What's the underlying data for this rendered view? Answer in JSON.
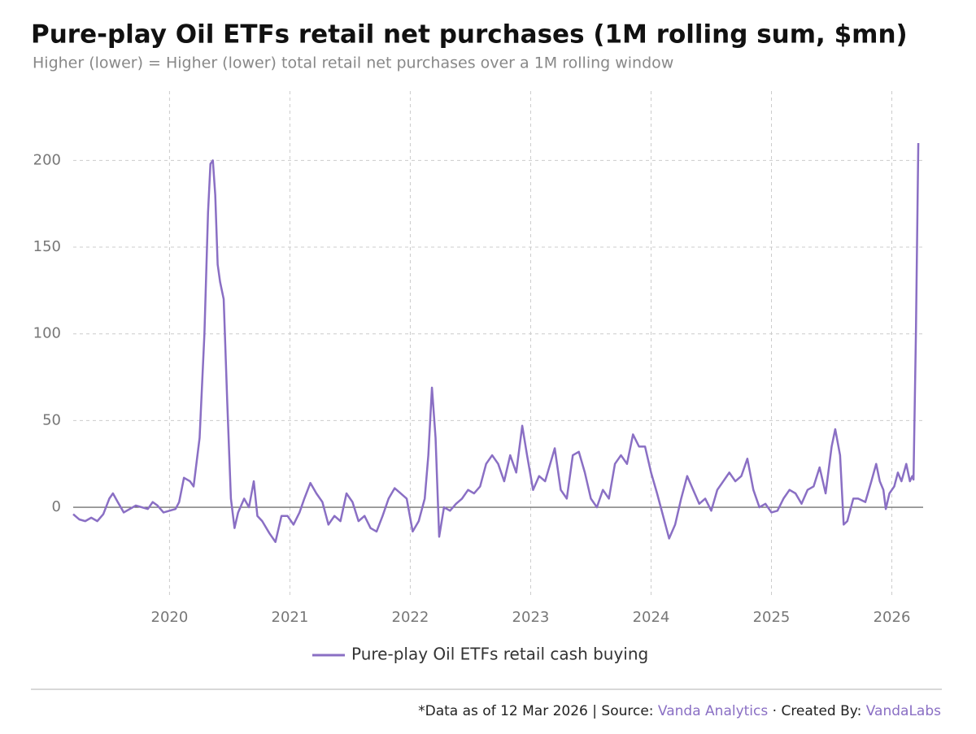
{
  "chart_data": {
    "type": "line",
    "title": "Pure-play Oil ETFs retail net purchases (1M rolling sum, $mn)",
    "subtitle": "Higher (lower) = Higher (lower) total retail net purchases over a 1M rolling window",
    "footnote": "*Data as of 12 Mar 2026 | Source:",
    "source": "Vanda Analytics",
    "credit_label": "· Created By:",
    "credit": "VandaLabs",
    "grid": true,
    "legend": "bottom",
    "xlim": [
      2019.2,
      2026.26
    ],
    "xticks": [
      2020,
      2021,
      2022,
      2023,
      2024,
      2025,
      2026
    ],
    "ylim": [
      -52,
      240
    ],
    "yticks": [
      0,
      50,
      100,
      150,
      200
    ],
    "x": [
      2019.2,
      2019.25,
      2019.3,
      2019.35,
      2019.4,
      2019.45,
      2019.5,
      2019.53,
      2019.57,
      2019.62,
      2019.67,
      2019.72,
      2019.77,
      2019.82,
      2019.86,
      2019.9,
      2019.95,
      2020.0,
      2020.05,
      2020.08,
      2020.12,
      2020.17,
      2020.2,
      2020.25,
      2020.29,
      2020.32,
      2020.34,
      2020.36,
      2020.38,
      2020.4,
      2020.42,
      2020.45,
      2020.48,
      2020.51,
      2020.54,
      2020.57,
      2020.62,
      2020.66,
      2020.7,
      2020.73,
      2020.77,
      2020.83,
      2020.88,
      2020.93,
      2020.98,
      2021.03,
      2021.08,
      2021.12,
      2021.17,
      2021.22,
      2021.27,
      2021.32,
      2021.37,
      2021.42,
      2021.47,
      2021.52,
      2021.57,
      2021.62,
      2021.67,
      2021.72,
      2021.77,
      2021.82,
      2021.87,
      2021.92,
      2021.97,
      2022.02,
      2022.07,
      2022.12,
      2022.15,
      2022.18,
      2022.21,
      2022.24,
      2022.28,
      2022.33,
      2022.38,
      2022.43,
      2022.48,
      2022.53,
      2022.58,
      2022.63,
      2022.68,
      2022.73,
      2022.78,
      2022.83,
      2022.88,
      2022.93,
      2022.97,
      2023.02,
      2023.07,
      2023.12,
      2023.2,
      2023.25,
      2023.3,
      2023.35,
      2023.4,
      2023.45,
      2023.5,
      2023.55,
      2023.6,
      2023.65,
      2023.7,
      2023.75,
      2023.8,
      2023.85,
      2023.9,
      2023.95,
      2024.0,
      2024.05,
      2024.1,
      2024.15,
      2024.2,
      2024.25,
      2024.3,
      2024.35,
      2024.4,
      2024.45,
      2024.5,
      2024.55,
      2024.6,
      2024.65,
      2024.7,
      2024.75,
      2024.8,
      2024.85,
      2024.9,
      2024.95,
      2025.0,
      2025.05,
      2025.1,
      2025.15,
      2025.2,
      2025.25,
      2025.3,
      2025.35,
      2025.4,
      2025.45,
      2025.5,
      2025.53,
      2025.57,
      2025.6,
      2025.63,
      2025.68,
      2025.72,
      2025.78,
      2025.83,
      2025.87,
      2025.9,
      2025.93,
      2025.95,
      2025.98,
      2026.02,
      2026.05,
      2026.08,
      2026.12,
      2026.15,
      2026.17,
      2026.18,
      2026.2,
      2026.22
    ],
    "series": [
      {
        "name": "Pure-play Oil ETFs retail cash buying",
        "color": "#8a6fc4",
        "values": [
          -4,
          -7,
          -8,
          -6,
          -8,
          -4,
          5,
          8,
          3,
          -3,
          -1,
          1,
          0,
          -1,
          3,
          1,
          -3,
          -2,
          -1,
          3,
          17,
          15,
          12,
          40,
          100,
          170,
          198,
          200,
          180,
          140,
          130,
          120,
          60,
          5,
          -12,
          -3,
          5,
          0,
          15,
          -5,
          -8,
          -15,
          -20,
          -5,
          -5,
          -10,
          -3,
          5,
          14,
          8,
          3,
          -10,
          -5,
          -8,
          8,
          3,
          -8,
          -5,
          -12,
          -14,
          -5,
          5,
          11,
          8,
          5,
          -14,
          -8,
          5,
          30,
          69,
          40,
          -17,
          0,
          -2,
          2,
          5,
          10,
          8,
          12,
          25,
          30,
          25,
          15,
          30,
          20,
          47,
          30,
          10,
          18,
          15,
          34,
          10,
          5,
          30,
          32,
          20,
          5,
          0,
          10,
          5,
          25,
          30,
          25,
          42,
          35,
          35,
          20,
          8,
          -5,
          -18,
          -10,
          5,
          18,
          10,
          2,
          5,
          -2,
          10,
          15,
          20,
          15,
          18,
          28,
          10,
          0,
          2,
          -3,
          -2,
          5,
          10,
          8,
          2,
          10,
          12,
          23,
          8,
          35,
          45,
          30,
          -10,
          -8,
          5,
          5,
          3,
          15,
          25,
          15,
          10,
          -1,
          8,
          12,
          20,
          15,
          25,
          15,
          18,
          16,
          100,
          210
        ]
      }
    ]
  }
}
